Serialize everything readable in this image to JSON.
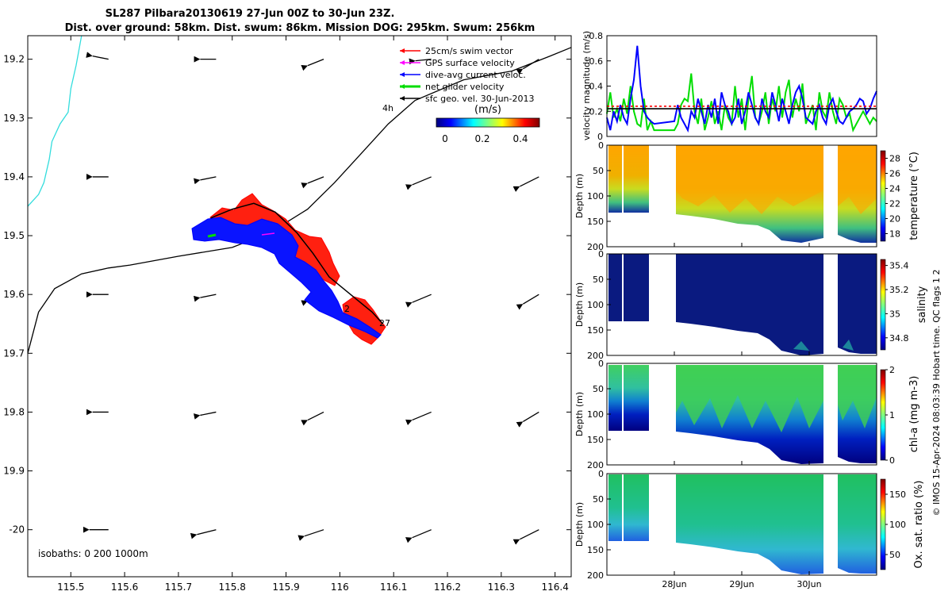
{
  "title": {
    "line1": "SL287 Pilbara20130619 27-Jun 00Z to 30-Jun 23Z.",
    "line2": "Dist. over ground: 58km. Dist. swum: 86km. Mission DOG: 295km. Swum: 256km"
  },
  "map": {
    "legend": [
      {
        "label": "25cm/s swim vector",
        "color": "#ff0000"
      },
      {
        "label": "GPS surface velocity",
        "color": "#ff00ff"
      },
      {
        "label": "dive-avg current veloc.",
        "color": "#0000ff"
      },
      {
        "label": "net glider velocity",
        "color": "#00dd00"
      },
      {
        "label": "sfc geo. vel. 30-Jun-2013",
        "color": "#000000"
      }
    ],
    "interval_label": "4h",
    "colorbar_label": "(m/s)",
    "colorbar_ticks": [
      "0",
      "0.2",
      "0.4"
    ],
    "isobath_label": "isobaths: 0   200  1000m",
    "track_labels": [
      "27",
      "2"
    ]
  },
  "copyright": "© IMOS 15-Apr-2024 08:03:39 Hobart time. QC flags 1  2",
  "chart_data": [
    {
      "type": "line",
      "id": "map",
      "xlabel": "",
      "ylabel": "",
      "xlim": [
        115.42,
        116.43
      ],
      "ylim": [
        -20.08,
        -19.16
      ],
      "x_ticks": [
        "115.5",
        "115.6",
        "115.7",
        "115.8",
        "115.9",
        "116",
        "116.1",
        "116.2",
        "116.3",
        "116.4"
      ],
      "x_tick_values": [
        115.5,
        115.6,
        115.7,
        115.8,
        115.9,
        116.0,
        116.1,
        116.2,
        116.3,
        116.4
      ],
      "y_ticks": [
        "19.2",
        "19.3",
        "19.4",
        "19.5",
        "19.6",
        "19.7",
        "19.8",
        "19.9",
        "-20"
      ],
      "y_tick_values": [
        -19.2,
        -19.3,
        -19.4,
        -19.5,
        -19.6,
        -19.7,
        -19.8,
        -19.9,
        -20.0
      ],
      "isobaths": [
        {
          "name": "0",
          "color": "#33dddd",
          "points": [
            [
              115.52,
              -19.16
            ],
            [
              115.51,
              -19.21
            ],
            [
              115.5,
              -19.25
            ],
            [
              115.495,
              -19.29
            ],
            [
              115.48,
              -19.31
            ],
            [
              115.465,
              -19.34
            ],
            [
              115.46,
              -19.37
            ],
            [
              115.45,
              -19.41
            ],
            [
              115.44,
              -19.43
            ],
            [
              115.42,
              -19.45
            ]
          ]
        },
        {
          "name": "200",
          "color": "#000000",
          "points": [
            [
              115.42,
              -19.7
            ],
            [
              115.44,
              -19.63
            ],
            [
              115.47,
              -19.59
            ],
            [
              115.52,
              -19.565
            ],
            [
              115.57,
              -19.555
            ],
            [
              115.61,
              -19.55
            ],
            [
              115.7,
              -19.535
            ],
            [
              115.8,
              -19.52
            ],
            [
              115.87,
              -19.495
            ],
            [
              115.94,
              -19.455
            ],
            [
              115.99,
              -19.41
            ],
            [
              116.04,
              -19.36
            ],
            [
              116.09,
              -19.31
            ],
            [
              116.14,
              -19.27
            ],
            [
              116.23,
              -19.235
            ],
            [
              116.32,
              -19.22
            ],
            [
              116.39,
              -19.195
            ],
            [
              116.43,
              -19.18
            ]
          ]
        }
      ],
      "geo_vectors": [
        {
          "lon": 115.57,
          "lat": -19.2,
          "u": -0.1,
          "v": 0.02
        },
        {
          "lon": 115.77,
          "lat": -19.2,
          "u": -0.1,
          "v": 0.0
        },
        {
          "lon": 115.97,
          "lat": -19.2,
          "u": -0.1,
          "v": -0.04
        },
        {
          "lon": 116.17,
          "lat": -19.2,
          "u": -0.1,
          "v": -0.01
        },
        {
          "lon": 116.37,
          "lat": -19.2,
          "u": -0.1,
          "v": -0.06
        },
        {
          "lon": 115.57,
          "lat": -19.4,
          "u": -0.1,
          "v": 0.0
        },
        {
          "lon": 115.77,
          "lat": -19.4,
          "u": -0.1,
          "v": -0.02
        },
        {
          "lon": 115.97,
          "lat": -19.4,
          "u": -0.1,
          "v": -0.04
        },
        {
          "lon": 116.17,
          "lat": -19.4,
          "u": -0.12,
          "v": -0.05
        },
        {
          "lon": 116.37,
          "lat": -19.4,
          "u": -0.12,
          "v": -0.06
        },
        {
          "lon": 115.57,
          "lat": -19.6,
          "u": -0.1,
          "v": 0.0
        },
        {
          "lon": 115.77,
          "lat": -19.6,
          "u": -0.1,
          "v": -0.02
        },
        {
          "lon": 115.97,
          "lat": -19.6,
          "u": -0.1,
          "v": -0.04
        },
        {
          "lon": 116.17,
          "lat": -19.6,
          "u": -0.12,
          "v": -0.05
        },
        {
          "lon": 116.37,
          "lat": -19.6,
          "u": -0.1,
          "v": -0.06
        },
        {
          "lon": 115.57,
          "lat": -19.8,
          "u": -0.1,
          "v": 0.0
        },
        {
          "lon": 115.77,
          "lat": -19.8,
          "u": -0.1,
          "v": -0.02
        },
        {
          "lon": 115.97,
          "lat": -19.8,
          "u": -0.1,
          "v": -0.05
        },
        {
          "lon": 116.17,
          "lat": -19.8,
          "u": -0.12,
          "v": -0.05
        },
        {
          "lon": 116.37,
          "lat": -19.8,
          "u": -0.1,
          "v": -0.06
        },
        {
          "lon": 115.57,
          "lat": -20.0,
          "u": -0.12,
          "v": 0.0
        },
        {
          "lon": 115.77,
          "lat": -20.0,
          "u": -0.12,
          "v": -0.03
        },
        {
          "lon": 115.97,
          "lat": -20.0,
          "u": -0.12,
          "v": -0.04
        },
        {
          "lon": 116.17,
          "lat": -20.0,
          "u": -0.12,
          "v": -0.05
        },
        {
          "lon": 116.37,
          "lat": -20.0,
          "u": -0.12,
          "v": -0.06
        }
      ],
      "glider_track": [
        [
          115.76,
          -19.47
        ],
        [
          115.8,
          -19.455
        ],
        [
          115.84,
          -19.445
        ],
        [
          115.88,
          -19.46
        ],
        [
          115.92,
          -19.495
        ],
        [
          115.95,
          -19.53
        ],
        [
          115.98,
          -19.57
        ],
        [
          116.02,
          -19.6
        ],
        [
          116.06,
          -19.63
        ],
        [
          116.08,
          -19.65
        ]
      ],
      "glider_track_color": "#000000",
      "swim_patch_color": "#ff0000",
      "current_patch_color": "#0000ff",
      "colormap": [
        "#00007f",
        "#0040ff",
        "#00c0ff",
        "#40ff80",
        "#c0ff00",
        "#ffc000",
        "#ff4000",
        "#7f0000"
      ]
    },
    {
      "type": "line",
      "id": "velocity",
      "ylabel": "velocity magnitude (m/s)",
      "xlim": [
        0,
        4
      ],
      "ylim": [
        0,
        0.8
      ],
      "y_ticks": [
        "0",
        "0.2",
        "0.4",
        "0.6",
        "0.8"
      ],
      "y_tick_values": [
        0,
        0.2,
        0.4,
        0.6,
        0.8
      ],
      "series": [
        {
          "color": "#00dd00",
          "x": [
            0.0,
            0.05,
            0.1,
            0.15,
            0.2,
            0.25,
            0.3,
            0.35,
            0.4,
            0.45,
            0.5,
            0.55,
            0.6,
            0.65,
            0.7,
            1.0,
            1.05,
            1.1,
            1.15,
            1.2,
            1.25,
            1.3,
            1.35,
            1.4,
            1.45,
            1.5,
            1.55,
            1.6,
            1.65,
            1.7,
            1.75,
            1.8,
            1.85,
            1.9,
            1.95,
            2.0,
            2.05,
            2.1,
            2.15,
            2.2,
            2.25,
            2.3,
            2.35,
            2.4,
            2.45,
            2.5,
            2.55,
            2.6,
            2.65,
            2.7,
            2.75,
            2.8,
            2.85,
            2.9,
            2.95,
            3.05,
            3.1,
            3.15,
            3.2,
            3.25,
            3.3,
            3.35,
            3.4,
            3.45,
            3.5,
            3.55,
            3.6,
            3.65,
            3.7,
            3.75,
            3.8,
            3.85,
            3.9,
            3.95,
            4.0
          ],
          "y": [
            0.18,
            0.35,
            0.15,
            0.22,
            0.12,
            0.3,
            0.18,
            0.4,
            0.2,
            0.1,
            0.08,
            0.3,
            0.05,
            0.12,
            0.05,
            0.05,
            0.1,
            0.25,
            0.3,
            0.28,
            0.5,
            0.2,
            0.1,
            0.3,
            0.05,
            0.15,
            0.28,
            0.1,
            0.2,
            0.05,
            0.25,
            0.15,
            0.1,
            0.4,
            0.15,
            0.3,
            0.05,
            0.3,
            0.48,
            0.15,
            0.1,
            0.2,
            0.35,
            0.1,
            0.3,
            0.2,
            0.4,
            0.15,
            0.35,
            0.45,
            0.15,
            0.3,
            0.2,
            0.42,
            0.1,
            0.25,
            0.05,
            0.35,
            0.2,
            0.15,
            0.35,
            0.2,
            0.1,
            0.3,
            0.25,
            0.15,
            0.18,
            0.05,
            0.1,
            0.15,
            0.2,
            0.15,
            0.1,
            0.15,
            0.12
          ]
        },
        {
          "color": "#0000ff",
          "x": [
            0.0,
            0.05,
            0.1,
            0.15,
            0.2,
            0.25,
            0.3,
            0.35,
            0.4,
            0.45,
            0.5,
            0.55,
            0.6,
            0.65,
            0.7,
            1.0,
            1.05,
            1.1,
            1.15,
            1.2,
            1.25,
            1.3,
            1.35,
            1.4,
            1.45,
            1.5,
            1.55,
            1.6,
            1.65,
            1.7,
            1.75,
            1.8,
            1.85,
            1.9,
            1.95,
            2.0,
            2.05,
            2.1,
            2.15,
            2.2,
            2.25,
            2.3,
            2.35,
            2.4,
            2.45,
            2.5,
            2.55,
            2.6,
            2.65,
            2.7,
            2.75,
            2.8,
            2.85,
            2.9,
            2.95,
            3.05,
            3.1,
            3.15,
            3.2,
            3.25,
            3.3,
            3.35,
            3.4,
            3.45,
            3.5,
            3.55,
            3.6,
            3.65,
            3.7,
            3.75,
            3.8,
            3.85,
            3.9,
            3.95,
            4.0
          ],
          "y": [
            0.15,
            0.05,
            0.2,
            0.12,
            0.25,
            0.15,
            0.1,
            0.3,
            0.45,
            0.72,
            0.4,
            0.2,
            0.15,
            0.12,
            0.1,
            0.12,
            0.25,
            0.15,
            0.1,
            0.05,
            0.2,
            0.15,
            0.3,
            0.2,
            0.1,
            0.25,
            0.15,
            0.3,
            0.1,
            0.35,
            0.25,
            0.2,
            0.1,
            0.15,
            0.3,
            0.1,
            0.2,
            0.35,
            0.25,
            0.15,
            0.1,
            0.3,
            0.2,
            0.15,
            0.35,
            0.25,
            0.12,
            0.3,
            0.2,
            0.1,
            0.25,
            0.35,
            0.4,
            0.3,
            0.15,
            0.1,
            0.2,
            0.25,
            0.15,
            0.1,
            0.25,
            0.3,
            0.2,
            0.12,
            0.1,
            0.15,
            0.2,
            0.22,
            0.25,
            0.3,
            0.28,
            0.18,
            0.22,
            0.3,
            0.36
          ]
        },
        {
          "color": "#000000",
          "x": [
            0,
            4
          ],
          "y": [
            0.22,
            0.22
          ]
        },
        {
          "color": "#ff0000",
          "x": [
            0,
            4
          ],
          "y": [
            0.24,
            0.24
          ]
        }
      ]
    },
    {
      "type": "heatmap",
      "id": "temperature",
      "ylabel": "Depth (m)",
      "cbar_label": "temperature (°C)",
      "cbar_ticks": [
        "28",
        "26",
        "24",
        "22",
        "20",
        "18"
      ],
      "cbar_range": [
        17,
        29
      ],
      "ylim": [
        0,
        200
      ],
      "y_ticks": [
        "0",
        "50",
        "100",
        "150",
        "200"
      ]
    },
    {
      "type": "heatmap",
      "id": "salinity",
      "ylabel": "Depth (m)",
      "cbar_label": "salinity",
      "cbar_ticks": [
        "35.4",
        "35.2",
        "35",
        "34.8"
      ],
      "cbar_range": [
        34.7,
        35.45
      ],
      "ylim": [
        0,
        200
      ],
      "y_ticks": [
        "0",
        "50",
        "100",
        "150",
        "200"
      ]
    },
    {
      "type": "heatmap",
      "id": "chla",
      "ylabel": "Depth (m)",
      "cbar_label": "chl-a (mg m-3)",
      "cbar_ticks": [
        "2",
        "1",
        "0"
      ],
      "cbar_range": [
        0,
        2
      ],
      "ylim": [
        0,
        200
      ],
      "y_ticks": [
        "0",
        "50",
        "100",
        "150",
        "200"
      ]
    },
    {
      "type": "heatmap",
      "id": "oxygen",
      "ylabel": "Depth (m)",
      "cbar_label": "Ox. sat. ratio (%)",
      "cbar_ticks": [
        "150",
        "100",
        "50"
      ],
      "cbar_range": [
        25,
        175
      ],
      "ylim": [
        0,
        200
      ],
      "y_ticks": [
        "0",
        "50",
        "100",
        "150",
        "200"
      ],
      "x_ticks": [
        "28Jun",
        "29Jun",
        "30Jun"
      ],
      "x_tick_values": [
        1,
        2,
        3
      ]
    }
  ]
}
